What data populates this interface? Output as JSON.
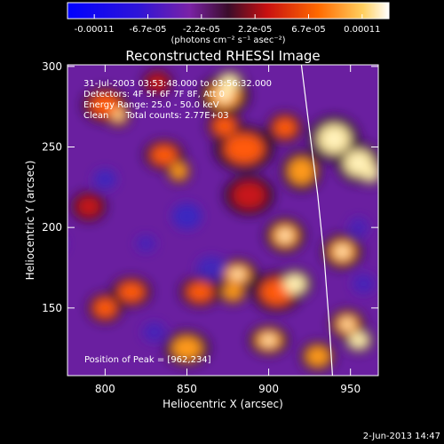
{
  "chart_data": {
    "type": "heatmap",
    "title": "Reconstructed RHESSI Image",
    "xlabel": "Heliocentric X (arcsec)",
    "ylabel": "Heliocentric Y (arcsec)",
    "xlim": [
      777,
      967
    ],
    "ylim": [
      108,
      301
    ],
    "xticks": [
      800,
      850,
      900,
      950
    ],
    "yticks": [
      150,
      200,
      250,
      300
    ],
    "colorbar": {
      "ticks": [
        "-0.00011",
        "-6.7e-05",
        "-2.2e-05",
        "2.2e-05",
        "6.7e-05",
        "0.00011"
      ],
      "unit_label": "(photons cm⁻² s⁻¹ asec⁻²)",
      "range": [
        -0.00011,
        0.00011
      ]
    },
    "annotations": [
      "31-Jul-2003 03:53:48.000 to 03:56:32.000",
      "Detectors: 4F 5F 6F 7F 8F, Att 0",
      "Energy Range: 25.0 - 50.0 keV",
      "Clean      Total counts: 2.77E+03"
    ],
    "peak_text": "Position of Peak = [962,234]",
    "limb_curve": [
      [
        920,
        301
      ],
      [
        925,
        260
      ],
      [
        930,
        220
      ],
      [
        934,
        180
      ],
      [
        937,
        140
      ],
      [
        939,
        108
      ]
    ],
    "blobs": [
      [
        800,
        276,
        9,
        7,
        0.7
      ],
      [
        808,
        270,
        5,
        5,
        0.9
      ],
      [
        836,
        245,
        8,
        6,
        0.75
      ],
      [
        845,
        235,
        5,
        5,
        0.8
      ],
      [
        873,
        282,
        10,
        8,
        0.85
      ],
      [
        876,
        290,
        6,
        5,
        1.0
      ],
      [
        873,
        263,
        7,
        6,
        0.7
      ],
      [
        885,
        249,
        12,
        9,
        0.75
      ],
      [
        888,
        220,
        10,
        8,
        0.6
      ],
      [
        881,
        171,
        8,
        6,
        0.9
      ],
      [
        878,
        160,
        6,
        5,
        0.8
      ],
      [
        900,
        130,
        8,
        6,
        0.9
      ],
      [
        905,
        160,
        10,
        8,
        0.75
      ],
      [
        910,
        195,
        8,
        7,
        0.85
      ],
      [
        916,
        165,
        7,
        6,
        1.0
      ],
      [
        920,
        235,
        8,
        8,
        0.8
      ],
      [
        940,
        255,
        10,
        9,
        1.0
      ],
      [
        955,
        240,
        9,
        8,
        0.95
      ],
      [
        945,
        185,
        8,
        7,
        0.85
      ],
      [
        948,
        140,
        7,
        6,
        0.9
      ],
      [
        955,
        130,
        6,
        5,
        0.95
      ],
      [
        816,
        160,
        8,
        6,
        0.75
      ],
      [
        800,
        150,
        7,
        6,
        0.65
      ],
      [
        850,
        125,
        9,
        7,
        0.8
      ],
      [
        858,
        160,
        8,
        6,
        0.7
      ],
      [
        930,
        120,
        7,
        6,
        0.8
      ],
      [
        910,
        262,
        7,
        6,
        0.7
      ],
      [
        832,
        290,
        6,
        5,
        0.6
      ],
      [
        790,
        213,
        7,
        6,
        0.55
      ],
      [
        962,
        234,
        5,
        5,
        1.0
      ],
      [
        825,
        190,
        6,
        5,
        -0.6
      ],
      [
        800,
        230,
        7,
        6,
        -0.7
      ],
      [
        850,
        207,
        9,
        8,
        -0.8
      ],
      [
        865,
        175,
        9,
        7,
        -0.65
      ],
      [
        830,
        135,
        7,
        6,
        -0.6
      ],
      [
        770,
        190,
        6,
        6,
        -0.5
      ],
      [
        955,
        200,
        6,
        6,
        -0.55
      ],
      [
        958,
        165,
        7,
        6,
        -0.6
      ]
    ]
  },
  "footer": {
    "date": "2-Jun-2013 14:47"
  }
}
